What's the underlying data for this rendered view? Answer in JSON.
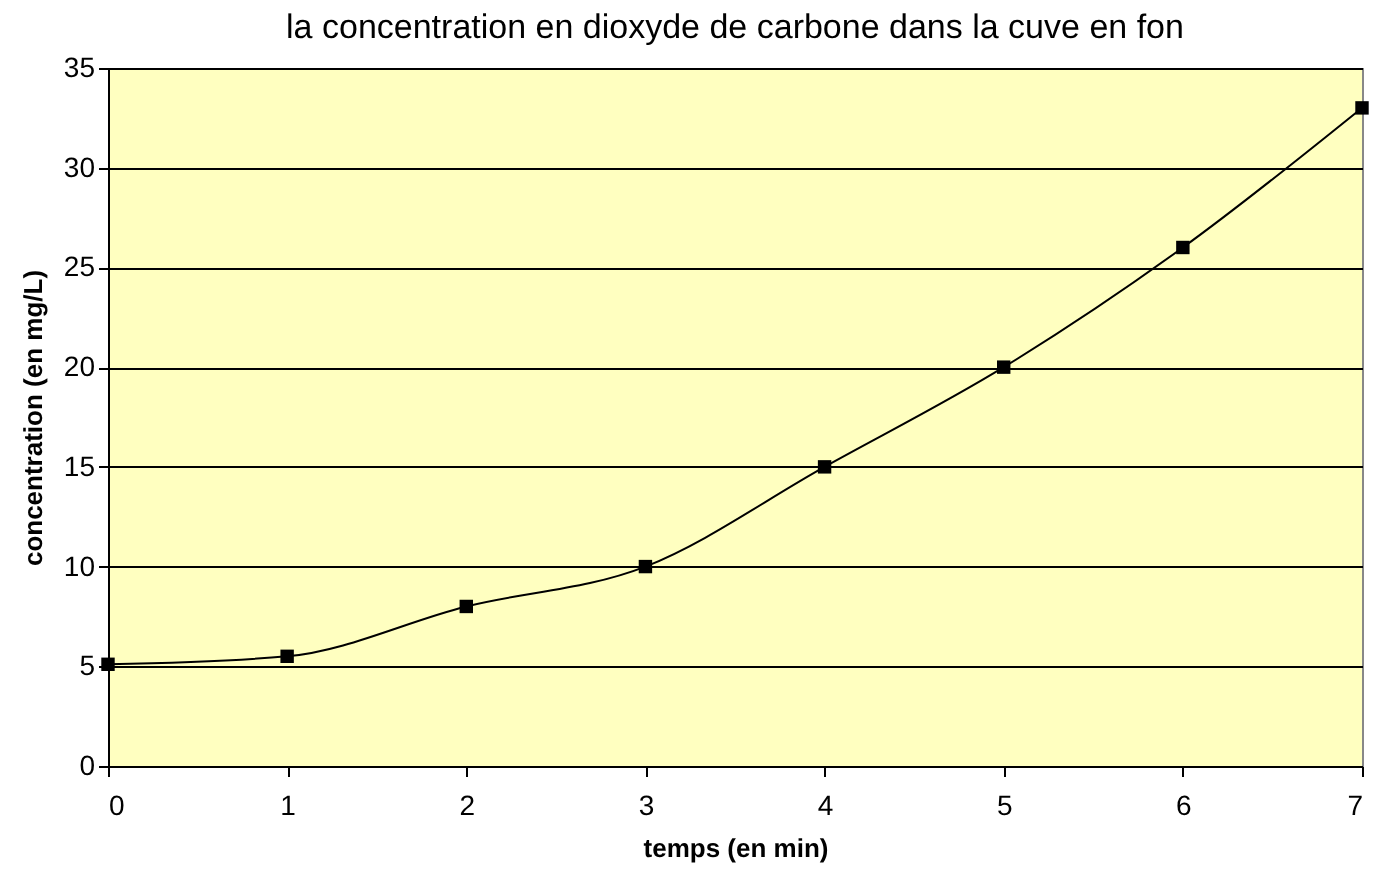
{
  "chart_data": {
    "type": "line",
    "title": "la concentration en dioxyde de carbone dans la cuve en fon",
    "xlabel": "temps (en min)",
    "ylabel": "concentration (en mg/L)",
    "x": [
      0,
      1,
      2,
      3,
      4,
      5,
      6,
      7
    ],
    "series": [
      {
        "color": "#000000",
        "values": [
          5.1,
          5.5,
          8,
          10,
          15,
          20,
          26,
          33
        ]
      }
    ],
    "xlim": [
      0,
      7
    ],
    "xticks": [
      0,
      1,
      2,
      3,
      4,
      5,
      6,
      7
    ],
    "ylim": [
      0,
      35
    ],
    "yticks": [
      0,
      5,
      10,
      15,
      20,
      25,
      30,
      35
    ],
    "grid": "y",
    "marker": "square",
    "line_style": "solid"
  }
}
